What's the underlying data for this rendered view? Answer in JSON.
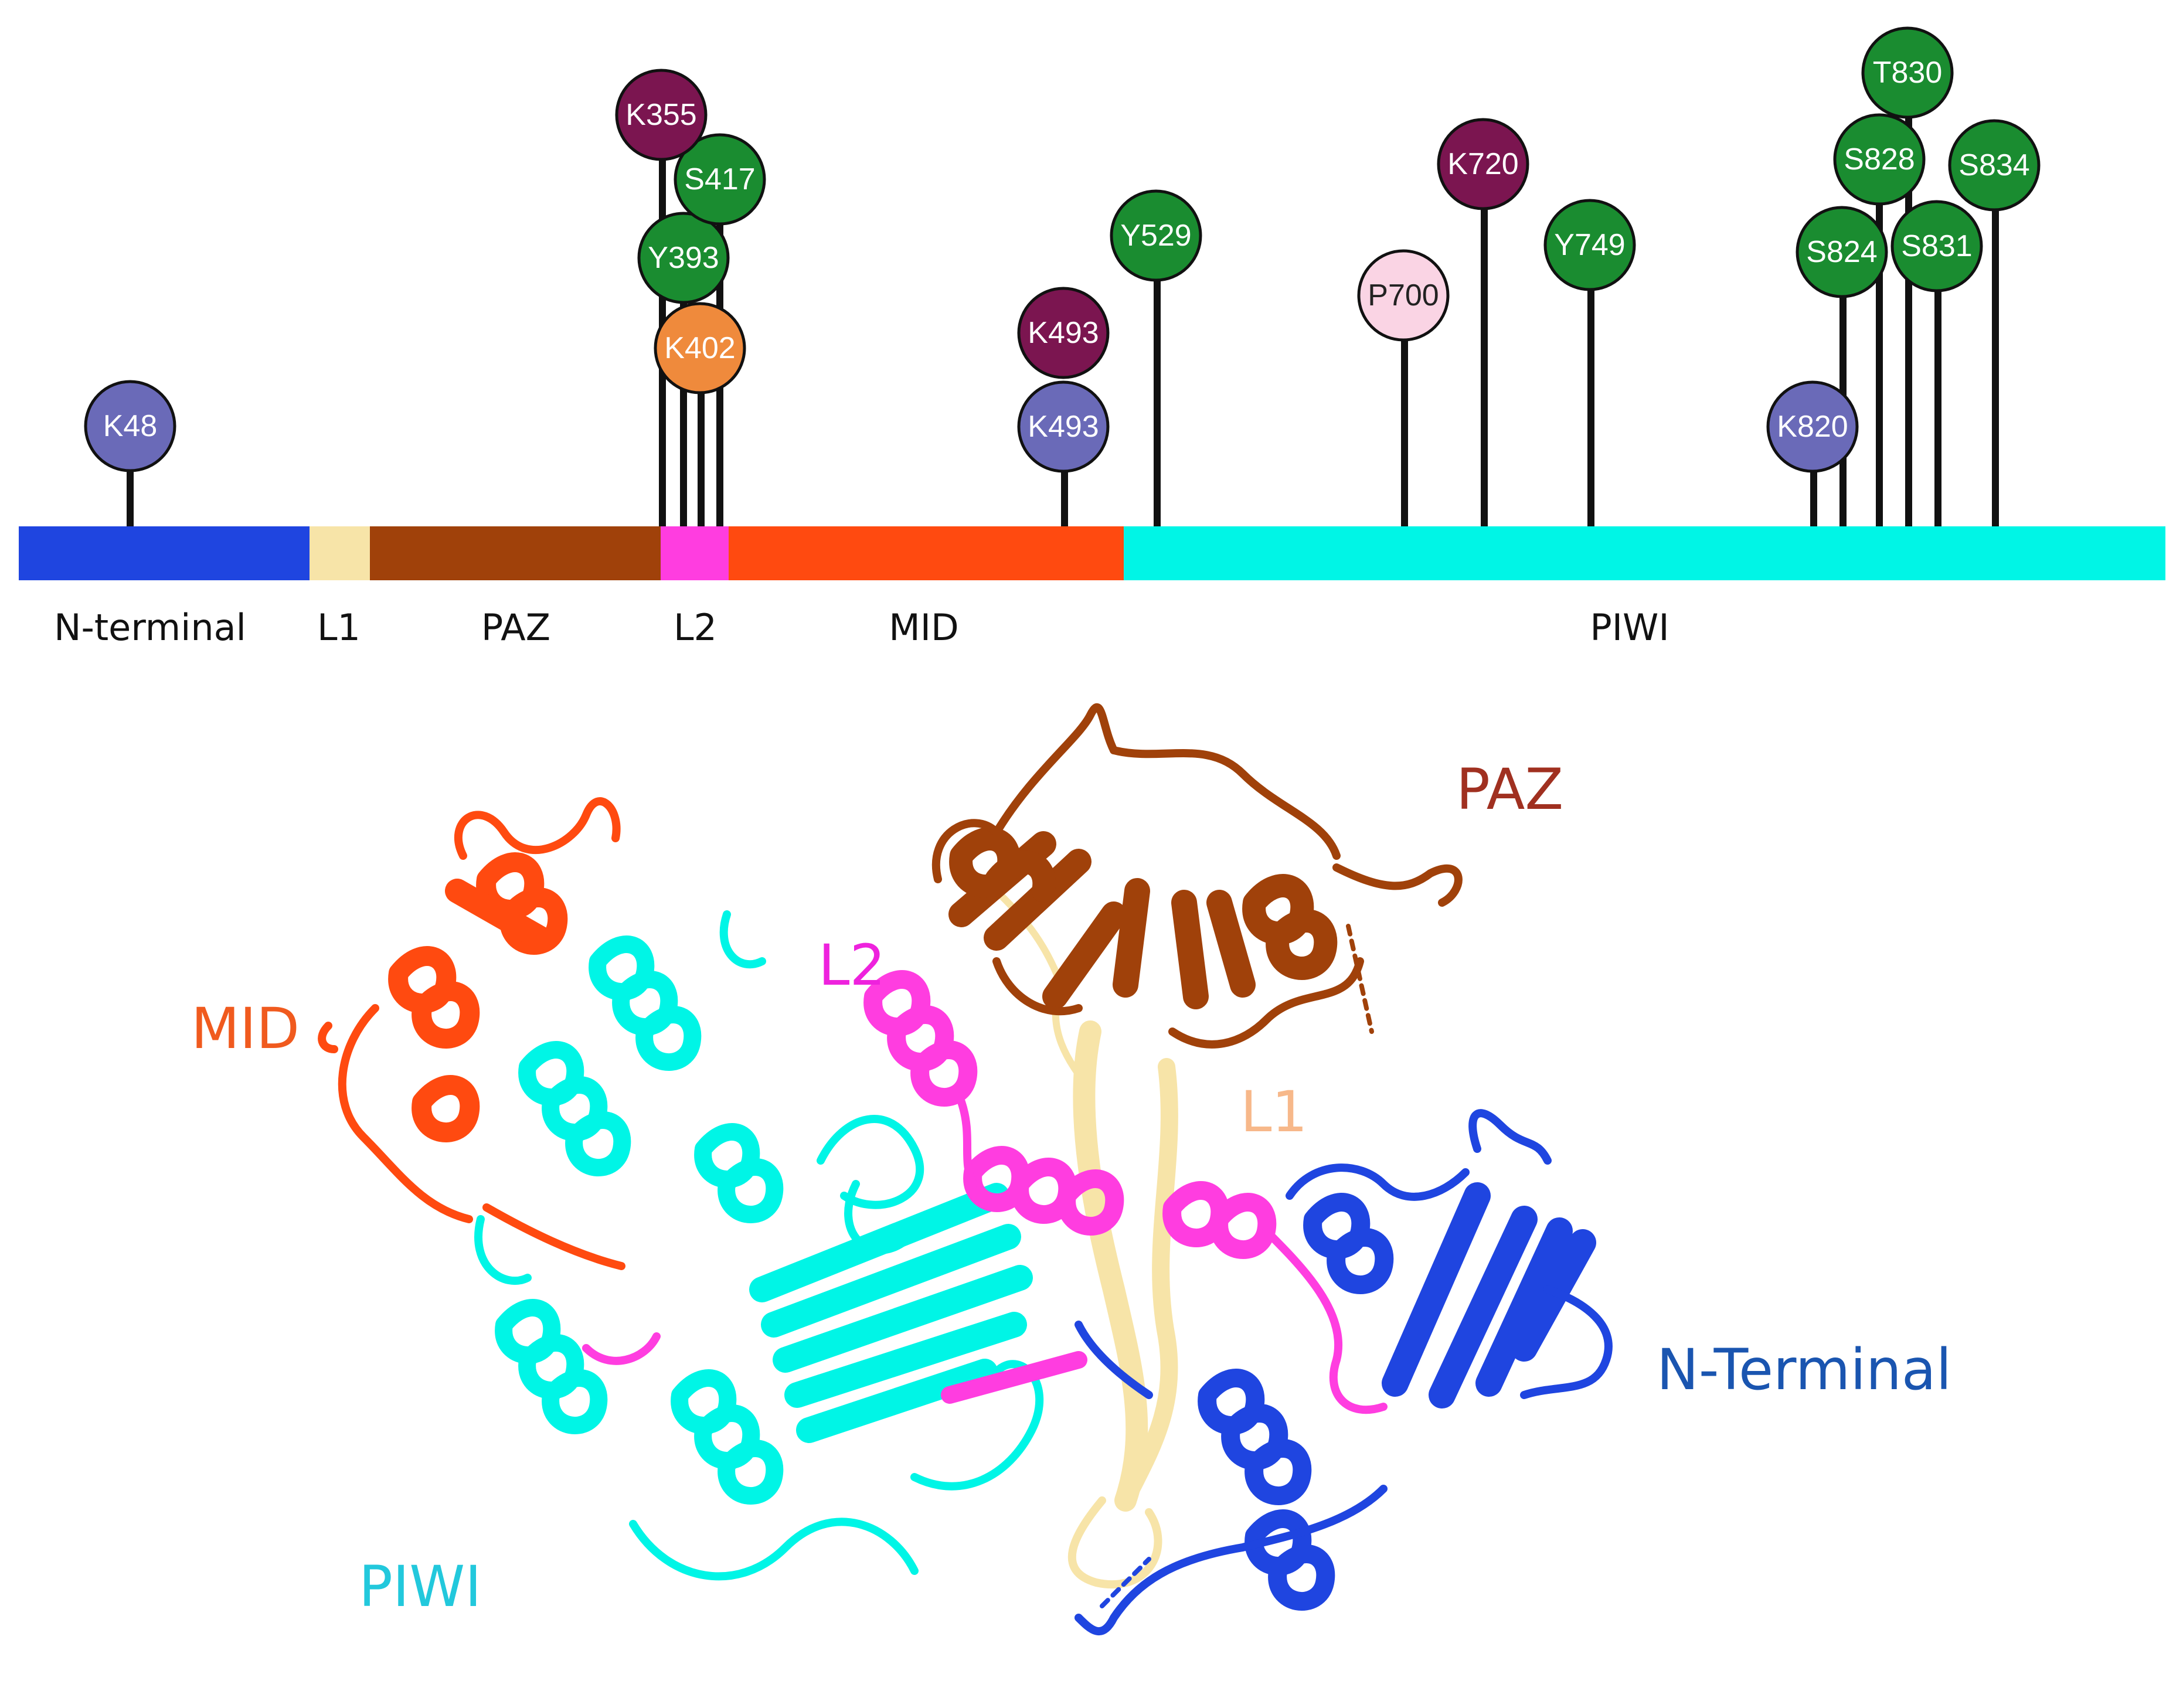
{
  "colors": {
    "n_terminal": "#1f45e0",
    "l1": "#f7e4a8",
    "paz": "#a0410a",
    "l2": "#ff3de0",
    "mid": "#ff4a10",
    "piwi": "#00f5e6",
    "ubiquitination": "#7b1550",
    "phosphorylation": "#1a8c30",
    "acetylation": "#6a6ab8",
    "sumoylation": "#ef8a3c",
    "hydroxylation": "#fad4e4"
  },
  "domains": [
    {
      "name": "N-terminal",
      "color": "#1f45e0"
    },
    {
      "name": "L1",
      "color": "#f7e4a8"
    },
    {
      "name": "PAZ",
      "color": "#a0410a"
    },
    {
      "name": "L2",
      "color": "#ff3de0"
    },
    {
      "name": "MID",
      "color": "#ff4a10"
    },
    {
      "name": "PIWI",
      "color": "#00f5e6"
    }
  ],
  "sites": [
    {
      "label": "K48",
      "color": "#6a6ab8"
    },
    {
      "label": "K355",
      "color": "#7b1550"
    },
    {
      "label": "S417",
      "color": "#1a8c30"
    },
    {
      "label": "Y393",
      "color": "#1a8c30"
    },
    {
      "label": "K402",
      "color": "#ef8a3c"
    },
    {
      "label": "K493",
      "color": "#7b1550"
    },
    {
      "label": "K493",
      "color": "#6a6ab8"
    },
    {
      "label": "Y529",
      "color": "#1a8c30"
    },
    {
      "label": "P700",
      "color": "#fad4e4"
    },
    {
      "label": "K720",
      "color": "#7b1550"
    },
    {
      "label": "Y749",
      "color": "#1a8c30"
    },
    {
      "label": "K820",
      "color": "#6a6ab8"
    },
    {
      "label": "S824",
      "color": "#1a8c30"
    },
    {
      "label": "S828",
      "color": "#1a8c30"
    },
    {
      "label": "T830",
      "color": "#1a8c30"
    },
    {
      "label": "S831",
      "color": "#1a8c30"
    },
    {
      "label": "S834",
      "color": "#1a8c30"
    }
  ],
  "structure_labels": [
    {
      "text": "PAZ",
      "color": "#a03020"
    },
    {
      "text": "L2",
      "color": "#ee22dd"
    },
    {
      "text": "MID",
      "color": "#f05a1e"
    },
    {
      "text": "L1",
      "color": "#f7b88a"
    },
    {
      "text": "N-Terminal",
      "color": "#1a55b0"
    },
    {
      "text": "PIWI",
      "color": "#22c8dc"
    }
  ]
}
